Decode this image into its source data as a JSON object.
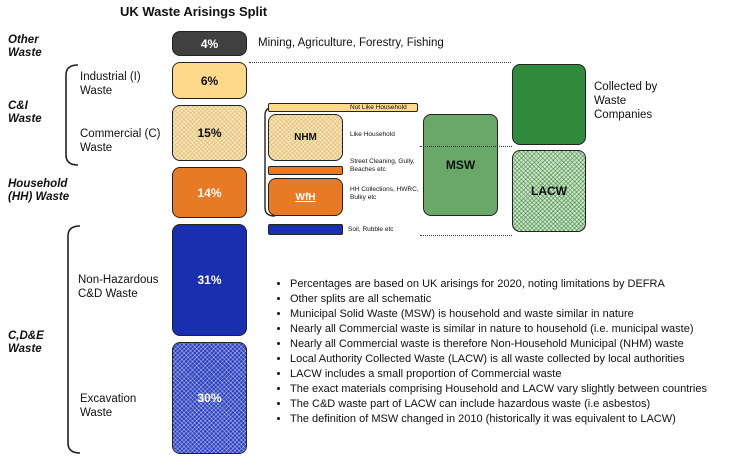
{
  "title": "UK Waste Arisings Split",
  "categories": {
    "other": "Other Waste",
    "ci": "C&I Waste",
    "household": "Household (HH) Waste",
    "cde": "C,D&E Waste"
  },
  "sub_labels": {
    "industrial": "Industrial (I) Waste",
    "commercial": "Commercial (C) Waste",
    "non_haz": "Non-Hazardous C&D Waste",
    "excavation": "Excavation Waste"
  },
  "boxes": {
    "other": "4%",
    "industrial": "6%",
    "commercial": "15%",
    "household": "14%",
    "non_haz": "31%",
    "excavation": "30%",
    "nhm": "NHM",
    "wfh": "WfH",
    "msw": "MSW",
    "lacw": "LACW"
  },
  "descriptions": {
    "other": "Mining, Agriculture, Forestry, Fishing",
    "not_like": "Not Like Household",
    "like": "Like Household",
    "street": "Street Cleaning, Gully, Beaches etc",
    "hh_collections": "HH Collections, HWRC, Bulky etc",
    "soil": "Soil, Rubble etc",
    "collected": "Collected by Waste Companies"
  },
  "notes": [
    "Percentages are based on UK arisings for 2020, noting limitations by DEFRA",
    "Other splits are all schematic",
    "Municipal Solid Waste (MSW) is household and waste similar in nature",
    "Nearly all Commercial waste is similar in nature to household (i.e. municipal waste)",
    "Nearly all Commercial waste is therefore Non-Household Municipal (NHM) waste",
    "Local Authority Collected Waste (LACW) is all waste collected by local authorities",
    "LACW includes a small proportion of Commercial waste",
    "The exact materials comprising Household and LACW vary slightly between countries",
    "The C&D waste part of LACW can include hazardous waste (i.e asbestos)",
    "The definition of MSW changed in 2010 (historically it was equivalent to LACW)"
  ],
  "colors": {
    "other": "#404040",
    "industrial": "#fdd98a",
    "household": "#e87a25",
    "blue": "#1a2fb0",
    "msw": "#6aa86a",
    "dark_green": "#2f8a3c"
  }
}
